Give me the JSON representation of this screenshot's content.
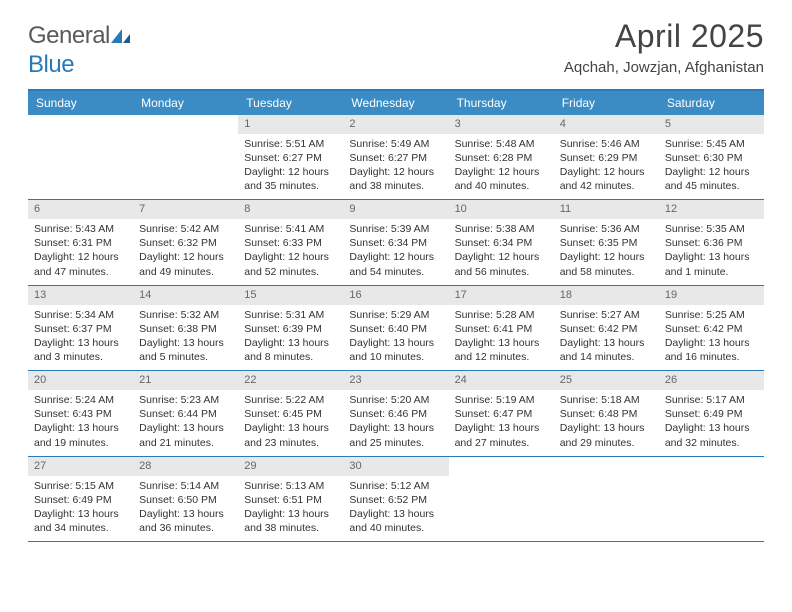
{
  "logo": {
    "text1": "General",
    "text2": "Blue"
  },
  "title": "April 2025",
  "location": "Aqchah, Jowzjan, Afghanistan",
  "colors": {
    "header_bar": "#3b8bc4",
    "header_border": "#2a7ab8",
    "daynum_bg": "#e8e8e8",
    "text": "#333333",
    "logo_gray": "#5a5a5a",
    "logo_blue": "#2a7ab8"
  },
  "day_labels": [
    "Sunday",
    "Monday",
    "Tuesday",
    "Wednesday",
    "Thursday",
    "Friday",
    "Saturday"
  ],
  "weeks": [
    [
      null,
      null,
      {
        "n": "1",
        "sr": "Sunrise: 5:51 AM",
        "ss": "Sunset: 6:27 PM",
        "dl1": "Daylight: 12 hours",
        "dl2": "and 35 minutes."
      },
      {
        "n": "2",
        "sr": "Sunrise: 5:49 AM",
        "ss": "Sunset: 6:27 PM",
        "dl1": "Daylight: 12 hours",
        "dl2": "and 38 minutes."
      },
      {
        "n": "3",
        "sr": "Sunrise: 5:48 AM",
        "ss": "Sunset: 6:28 PM",
        "dl1": "Daylight: 12 hours",
        "dl2": "and 40 minutes."
      },
      {
        "n": "4",
        "sr": "Sunrise: 5:46 AM",
        "ss": "Sunset: 6:29 PM",
        "dl1": "Daylight: 12 hours",
        "dl2": "and 42 minutes."
      },
      {
        "n": "5",
        "sr": "Sunrise: 5:45 AM",
        "ss": "Sunset: 6:30 PM",
        "dl1": "Daylight: 12 hours",
        "dl2": "and 45 minutes."
      }
    ],
    [
      {
        "n": "6",
        "sr": "Sunrise: 5:43 AM",
        "ss": "Sunset: 6:31 PM",
        "dl1": "Daylight: 12 hours",
        "dl2": "and 47 minutes."
      },
      {
        "n": "7",
        "sr": "Sunrise: 5:42 AM",
        "ss": "Sunset: 6:32 PM",
        "dl1": "Daylight: 12 hours",
        "dl2": "and 49 minutes."
      },
      {
        "n": "8",
        "sr": "Sunrise: 5:41 AM",
        "ss": "Sunset: 6:33 PM",
        "dl1": "Daylight: 12 hours",
        "dl2": "and 52 minutes."
      },
      {
        "n": "9",
        "sr": "Sunrise: 5:39 AM",
        "ss": "Sunset: 6:34 PM",
        "dl1": "Daylight: 12 hours",
        "dl2": "and 54 minutes."
      },
      {
        "n": "10",
        "sr": "Sunrise: 5:38 AM",
        "ss": "Sunset: 6:34 PM",
        "dl1": "Daylight: 12 hours",
        "dl2": "and 56 minutes."
      },
      {
        "n": "11",
        "sr": "Sunrise: 5:36 AM",
        "ss": "Sunset: 6:35 PM",
        "dl1": "Daylight: 12 hours",
        "dl2": "and 58 minutes."
      },
      {
        "n": "12",
        "sr": "Sunrise: 5:35 AM",
        "ss": "Sunset: 6:36 PM",
        "dl1": "Daylight: 13 hours",
        "dl2": "and 1 minute."
      }
    ],
    [
      {
        "n": "13",
        "sr": "Sunrise: 5:34 AM",
        "ss": "Sunset: 6:37 PM",
        "dl1": "Daylight: 13 hours",
        "dl2": "and 3 minutes."
      },
      {
        "n": "14",
        "sr": "Sunrise: 5:32 AM",
        "ss": "Sunset: 6:38 PM",
        "dl1": "Daylight: 13 hours",
        "dl2": "and 5 minutes."
      },
      {
        "n": "15",
        "sr": "Sunrise: 5:31 AM",
        "ss": "Sunset: 6:39 PM",
        "dl1": "Daylight: 13 hours",
        "dl2": "and 8 minutes."
      },
      {
        "n": "16",
        "sr": "Sunrise: 5:29 AM",
        "ss": "Sunset: 6:40 PM",
        "dl1": "Daylight: 13 hours",
        "dl2": "and 10 minutes."
      },
      {
        "n": "17",
        "sr": "Sunrise: 5:28 AM",
        "ss": "Sunset: 6:41 PM",
        "dl1": "Daylight: 13 hours",
        "dl2": "and 12 minutes."
      },
      {
        "n": "18",
        "sr": "Sunrise: 5:27 AM",
        "ss": "Sunset: 6:42 PM",
        "dl1": "Daylight: 13 hours",
        "dl2": "and 14 minutes."
      },
      {
        "n": "19",
        "sr": "Sunrise: 5:25 AM",
        "ss": "Sunset: 6:42 PM",
        "dl1": "Daylight: 13 hours",
        "dl2": "and 16 minutes."
      }
    ],
    [
      {
        "n": "20",
        "sr": "Sunrise: 5:24 AM",
        "ss": "Sunset: 6:43 PM",
        "dl1": "Daylight: 13 hours",
        "dl2": "and 19 minutes."
      },
      {
        "n": "21",
        "sr": "Sunrise: 5:23 AM",
        "ss": "Sunset: 6:44 PM",
        "dl1": "Daylight: 13 hours",
        "dl2": "and 21 minutes."
      },
      {
        "n": "22",
        "sr": "Sunrise: 5:22 AM",
        "ss": "Sunset: 6:45 PM",
        "dl1": "Daylight: 13 hours",
        "dl2": "and 23 minutes."
      },
      {
        "n": "23",
        "sr": "Sunrise: 5:20 AM",
        "ss": "Sunset: 6:46 PM",
        "dl1": "Daylight: 13 hours",
        "dl2": "and 25 minutes."
      },
      {
        "n": "24",
        "sr": "Sunrise: 5:19 AM",
        "ss": "Sunset: 6:47 PM",
        "dl1": "Daylight: 13 hours",
        "dl2": "and 27 minutes."
      },
      {
        "n": "25",
        "sr": "Sunrise: 5:18 AM",
        "ss": "Sunset: 6:48 PM",
        "dl1": "Daylight: 13 hours",
        "dl2": "and 29 minutes."
      },
      {
        "n": "26",
        "sr": "Sunrise: 5:17 AM",
        "ss": "Sunset: 6:49 PM",
        "dl1": "Daylight: 13 hours",
        "dl2": "and 32 minutes."
      }
    ],
    [
      {
        "n": "27",
        "sr": "Sunrise: 5:15 AM",
        "ss": "Sunset: 6:49 PM",
        "dl1": "Daylight: 13 hours",
        "dl2": "and 34 minutes."
      },
      {
        "n": "28",
        "sr": "Sunrise: 5:14 AM",
        "ss": "Sunset: 6:50 PM",
        "dl1": "Daylight: 13 hours",
        "dl2": "and 36 minutes."
      },
      {
        "n": "29",
        "sr": "Sunrise: 5:13 AM",
        "ss": "Sunset: 6:51 PM",
        "dl1": "Daylight: 13 hours",
        "dl2": "and 38 minutes."
      },
      {
        "n": "30",
        "sr": "Sunrise: 5:12 AM",
        "ss": "Sunset: 6:52 PM",
        "dl1": "Daylight: 13 hours",
        "dl2": "and 40 minutes."
      },
      null,
      null,
      null
    ]
  ]
}
